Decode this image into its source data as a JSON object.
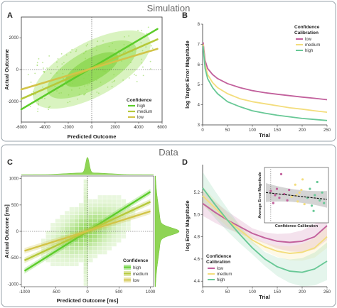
{
  "sections": {
    "top": "Simulation",
    "bottom": "Data"
  },
  "palette": {
    "high": "#5ccc2a",
    "medium": "#b5c93a",
    "low": "#d2c448",
    "calib_low": "#c2609c",
    "calib_medium": "#f3dd7c",
    "calib_high": "#68c896",
    "section_border": "#9aa3ab"
  },
  "chart_data": [
    {
      "panel": "A",
      "type": "scatter",
      "xlabel": "Predicted Outcome",
      "ylabel": "Actual Outcome",
      "xlim": [
        -6000,
        6000
      ],
      "ylim": [
        -3300,
        3300
      ],
      "xticks": [
        "-6000",
        "-4000",
        "-2000",
        "0",
        "2000",
        "4000",
        "6000"
      ],
      "yticks": [
        "-2000",
        "0",
        "2000"
      ],
      "legend": {
        "title": "Confidence",
        "entries": [
          "high",
          "medium",
          "low"
        ],
        "position": "bottom-right"
      },
      "series": [
        {
          "name": "high",
          "x": [
            -6000,
            5600
          ],
          "y": [
            -2500,
            2550
          ]
        },
        {
          "name": "medium",
          "x": [
            -6000,
            5600
          ],
          "y": [
            -1850,
            1900
          ]
        },
        {
          "name": "low",
          "x": [
            -6000,
            5600
          ],
          "y": [
            -1250,
            1300
          ]
        }
      ]
    },
    {
      "panel": "B",
      "type": "line",
      "xlabel": "Trial",
      "ylabel": "log Target Error Magnitude",
      "xlim": [
        0,
        250
      ],
      "ylim": [
        3,
        8
      ],
      "xticks": [
        "0",
        "50",
        "100",
        "150",
        "200",
        "250"
      ],
      "yticks": [
        "3",
        "4",
        "5",
        "6",
        "7",
        "8"
      ],
      "legend": {
        "title": "Confidence Calibration",
        "entries": [
          "low",
          "medium",
          "high"
        ],
        "position": "top-right"
      },
      "x": [
        1,
        5,
        10,
        20,
        30,
        50,
        75,
        100,
        125,
        150,
        175,
        200,
        225,
        250
      ],
      "series": [
        {
          "name": "low",
          "values": [
            7.1,
            6.2,
            5.8,
            5.5,
            5.3,
            5.05,
            4.85,
            4.7,
            4.6,
            4.52,
            4.45,
            4.38,
            4.32,
            4.25
          ]
        },
        {
          "name": "medium",
          "values": [
            7.0,
            6.0,
            5.5,
            5.1,
            4.85,
            4.55,
            4.3,
            4.15,
            4.05,
            3.95,
            3.85,
            3.78,
            3.7,
            3.63
          ]
        },
        {
          "name": "high",
          "values": [
            6.9,
            5.8,
            5.3,
            4.85,
            4.55,
            4.15,
            3.9,
            3.7,
            3.58,
            3.48,
            3.4,
            3.32,
            3.27,
            3.22
          ]
        }
      ]
    },
    {
      "panel": "C",
      "type": "scatter",
      "xlabel": "Predicted Outcome [ms]",
      "ylabel": "Actual Outcome [ms]",
      "xlim": [
        -1050,
        1050
      ],
      "ylim": [
        -1050,
        1050
      ],
      "xticks": [
        "-1000",
        "-500",
        "0",
        "500",
        "1000"
      ],
      "yticks": [
        "-1000",
        "-500",
        "0",
        "500",
        "1000"
      ],
      "legend": {
        "title": "Confidence",
        "entries": [
          "high",
          "medium",
          "low"
        ],
        "position": "bottom-right"
      },
      "series": [
        {
          "name": "high",
          "x": [
            -1000,
            1000
          ],
          "y": [
            -750,
            750
          ]
        },
        {
          "name": "medium",
          "x": [
            -1000,
            1000
          ],
          "y": [
            -550,
            560
          ]
        },
        {
          "name": "low",
          "x": [
            -1000,
            1000
          ],
          "y": [
            -370,
            380
          ]
        }
      ]
    },
    {
      "panel": "D",
      "type": "line",
      "xlabel": "Trial",
      "ylabel": "log Error Magnitude",
      "xlim": [
        0,
        250
      ],
      "ylim": [
        4.35,
        5.45
      ],
      "xticks": [
        "0",
        "50",
        "100",
        "150",
        "200",
        "250"
      ],
      "yticks": [
        "4.4",
        "4.6",
        "4.8",
        "5.0",
        "5.2"
      ],
      "legend": {
        "title": "Confidence Calibration",
        "entries": [
          "low",
          "medium",
          "high"
        ],
        "position": "bottom-left"
      },
      "x": [
        0,
        25,
        50,
        75,
        100,
        125,
        150,
        175,
        200,
        225,
        250
      ],
      "series": [
        {
          "name": "low",
          "values": [
            5.1,
            5.02,
            4.95,
            4.89,
            4.83,
            4.79,
            4.76,
            4.75,
            4.76,
            4.8,
            4.9
          ]
        },
        {
          "name": "medium",
          "values": [
            5.17,
            5.06,
            4.95,
            4.86,
            4.77,
            4.71,
            4.67,
            4.65,
            4.66,
            4.7,
            4.8
          ]
        },
        {
          "name": "high",
          "values": [
            5.24,
            5.09,
            4.95,
            4.82,
            4.7,
            4.6,
            4.53,
            4.49,
            4.48,
            4.51,
            4.58
          ]
        }
      ],
      "inset": {
        "xlabel": "Confidence Calibration",
        "ylabel": "Average Error Magnitude",
        "fit": {
          "x": [
            0,
            1
          ],
          "y": [
            0.55,
            0.42
          ]
        },
        "points": [
          {
            "x": 0.08,
            "y": 0.58,
            "c": "low"
          },
          {
            "x": 0.12,
            "y": 0.35,
            "c": "low"
          },
          {
            "x": 0.18,
            "y": 0.62,
            "c": "low"
          },
          {
            "x": 0.22,
            "y": 0.45,
            "c": "low"
          },
          {
            "x": 0.25,
            "y": 0.9,
            "c": "low"
          },
          {
            "x": 0.3,
            "y": 0.52,
            "c": "low"
          },
          {
            "x": 0.35,
            "y": 0.4,
            "c": "low"
          },
          {
            "x": 0.38,
            "y": 0.6,
            "c": "low"
          },
          {
            "x": 0.15,
            "y": 0.5,
            "c": "low"
          },
          {
            "x": 0.42,
            "y": 0.47,
            "c": "medium"
          },
          {
            "x": 0.48,
            "y": 0.7,
            "c": "medium"
          },
          {
            "x": 0.52,
            "y": 0.38,
            "c": "medium"
          },
          {
            "x": 0.55,
            "y": 0.55,
            "c": "medium"
          },
          {
            "x": 0.6,
            "y": 0.8,
            "c": "medium"
          },
          {
            "x": 0.63,
            "y": 0.33,
            "c": "medium"
          },
          {
            "x": 0.58,
            "y": 0.6,
            "c": "medium"
          },
          {
            "x": 0.5,
            "y": 0.5,
            "c": "medium"
          },
          {
            "x": 0.68,
            "y": 0.45,
            "c": "high"
          },
          {
            "x": 0.72,
            "y": 0.62,
            "c": "high"
          },
          {
            "x": 0.75,
            "y": 0.3,
            "c": "high"
          },
          {
            "x": 0.8,
            "y": 0.5,
            "c": "high"
          },
          {
            "x": 0.84,
            "y": 0.75,
            "c": "high"
          },
          {
            "x": 0.88,
            "y": 0.4,
            "c": "high"
          },
          {
            "x": 0.92,
            "y": 0.55,
            "c": "high"
          },
          {
            "x": 0.95,
            "y": 0.35,
            "c": "high"
          },
          {
            "x": 0.78,
            "y": 0.2,
            "c": "high"
          }
        ]
      }
    }
  ]
}
